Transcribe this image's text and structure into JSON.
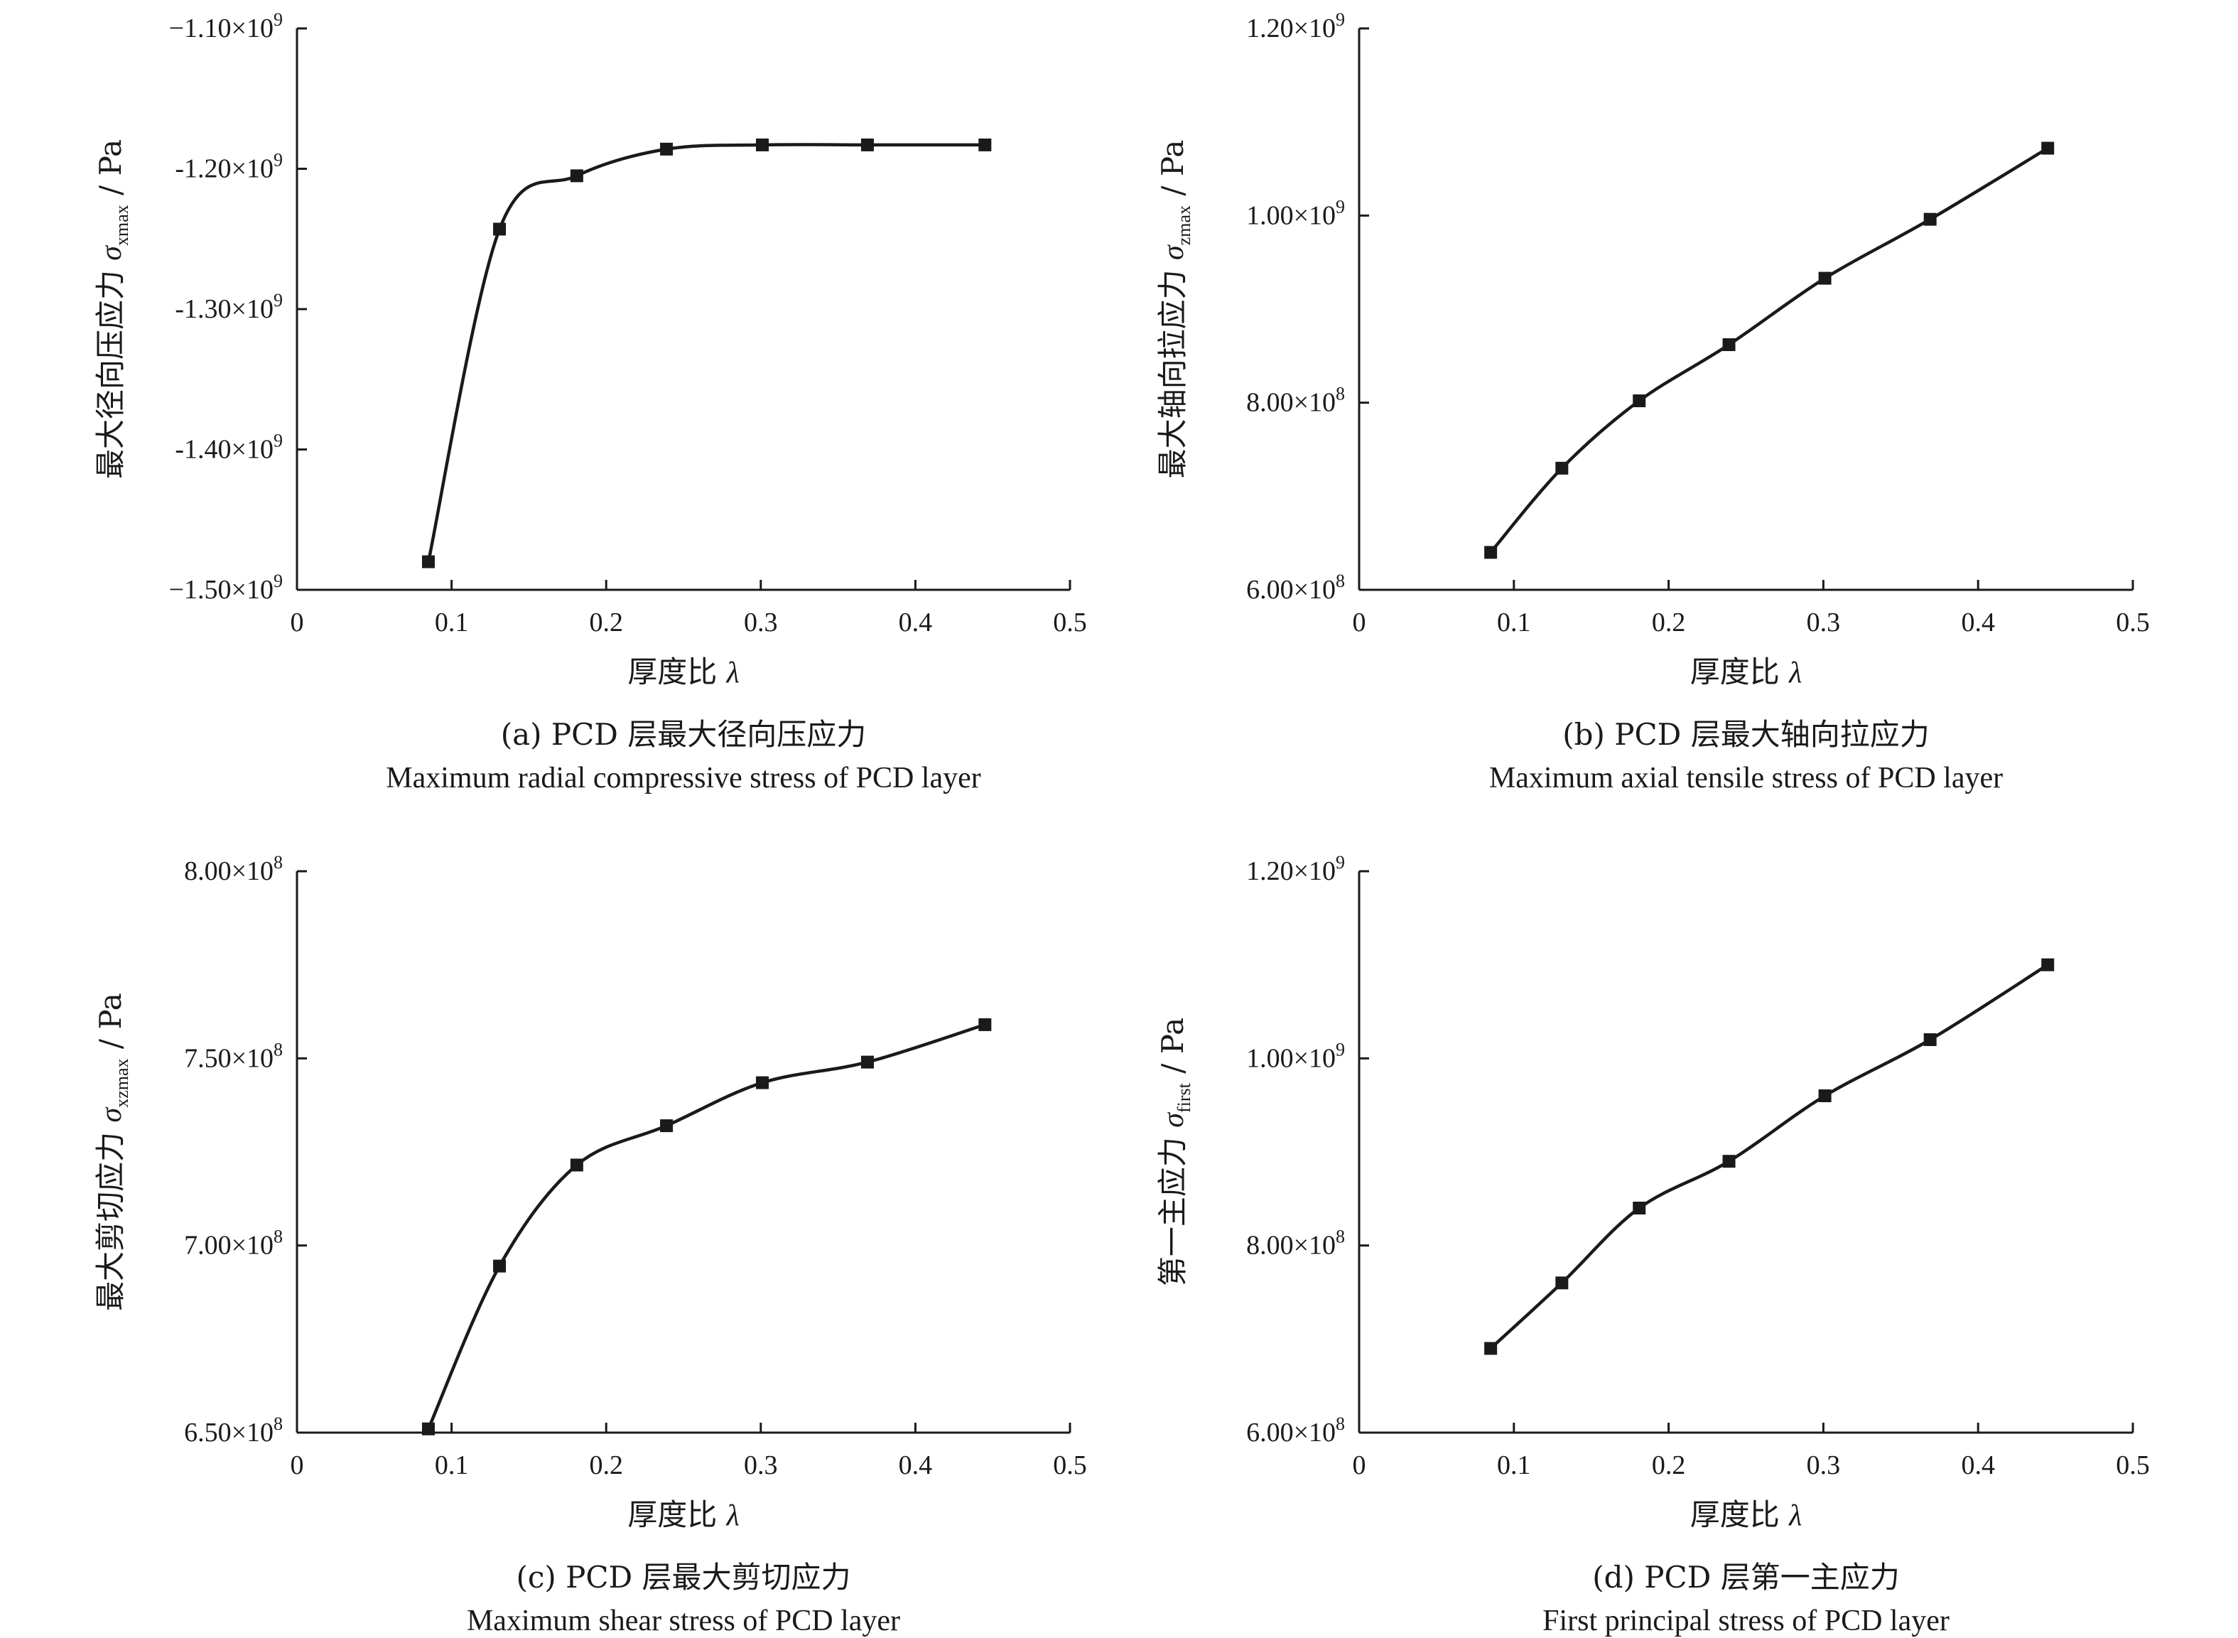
{
  "chart_data": [
    {
      "type": "line",
      "panel": "a",
      "x": [
        0.085,
        0.131,
        0.181,
        0.239,
        0.301,
        0.369,
        0.445
      ],
      "series": [
        {
          "values": [
            -1480000000.0,
            -1243000000.0,
            -1205000000.0,
            -1186000000.0,
            -1183000000.0,
            -1183000000.0,
            -1183000000.0
          ]
        }
      ],
      "xlim": [
        0,
        0.5
      ],
      "ylim": [
        -1500000000.0,
        -1100000000.0
      ],
      "xticks": [
        "0",
        "0.1",
        "0.2",
        "0.3",
        "0.4",
        "0.5"
      ],
      "yticks": [
        {
          "mant": "−1.10×10",
          "exp": "9"
        },
        {
          "mant": "-1.20×10",
          "exp": "9"
        },
        {
          "mant": "-1.30×10",
          "exp": "9"
        },
        {
          "mant": "-1.40×10",
          "exp": "9"
        },
        {
          "mant": "−1.50×10",
          "exp": "9"
        }
      ],
      "xlabel": {
        "text": "厚度比",
        "symbol": "λ"
      },
      "ylabel": {
        "text": "最大径向压应力",
        "symbol": "σ",
        "sub": "xmax",
        "unit": " / Pa"
      },
      "caption_cn": "(a) PCD 层最大径向压应力",
      "caption_en": "Maximum radial compressive stress of PCD layer",
      "grid": false,
      "marker": "square"
    },
    {
      "type": "line",
      "panel": "b",
      "x": [
        0.085,
        0.131,
        0.181,
        0.239,
        0.301,
        0.369,
        0.445
      ],
      "series": [
        {
          "values": [
            640000000.0,
            730000000.0,
            802000000.0,
            862000000.0,
            933000000.0,
            996000000.0,
            1072000000.0
          ]
        }
      ],
      "xlim": [
        0,
        0.5
      ],
      "ylim": [
        600000000.0,
        1200000000.0
      ],
      "xticks": [
        "0",
        "0.1",
        "0.2",
        "0.3",
        "0.4",
        "0.5"
      ],
      "yticks": [
        {
          "mant": "1.20×10",
          "exp": "9"
        },
        {
          "mant": "1.00×10",
          "exp": "9"
        },
        {
          "mant": "8.00×10",
          "exp": "8"
        },
        {
          "mant": "6.00×10",
          "exp": "8"
        }
      ],
      "xlabel": {
        "text": "厚度比",
        "symbol": "λ"
      },
      "ylabel": {
        "text": "最大轴向拉应力",
        "symbol": "σ",
        "sub": "zmax",
        "unit": " / Pa"
      },
      "caption_cn": "(b) PCD 层最大轴向拉应力",
      "caption_en": "Maximum axial tensile stress of PCD layer",
      "grid": false,
      "marker": "square"
    },
    {
      "type": "line",
      "panel": "c",
      "x": [
        0.085,
        0.131,
        0.181,
        0.239,
        0.301,
        0.369,
        0.445
      ],
      "series": [
        {
          "values": [
            651000000.0,
            694500000.0,
            721500000.0,
            732000000.0,
            743500000.0,
            749000000.0,
            759000000.0
          ]
        }
      ],
      "xlim": [
        0,
        0.5
      ],
      "ylim": [
        650000000.0,
        800000000.0
      ],
      "xticks": [
        "0",
        "0.1",
        "0.2",
        "0.3",
        "0.4",
        "0.5"
      ],
      "yticks": [
        {
          "mant": "8.00×10",
          "exp": "8"
        },
        {
          "mant": "7.50×10",
          "exp": "8"
        },
        {
          "mant": "7.00×10",
          "exp": "8"
        },
        {
          "mant": "6.50×10",
          "exp": "8"
        }
      ],
      "xlabel": {
        "text": "厚度比",
        "symbol": "λ"
      },
      "ylabel": {
        "text": "最大剪切应力",
        "symbol": "σ",
        "sub": "xzmax",
        "unit": " / Pa"
      },
      "caption_cn": "(c) PCD 层最大剪切应力",
      "caption_en": "Maximum shear stress of PCD layer",
      "grid": false,
      "marker": "square"
    },
    {
      "type": "line",
      "panel": "d",
      "x": [
        0.085,
        0.131,
        0.181,
        0.239,
        0.301,
        0.369,
        0.445
      ],
      "series": [
        {
          "values": [
            690000000.0,
            760000000.0,
            840000000.0,
            890000000.0,
            960000000.0,
            1020000000.0,
            1100000000.0
          ]
        }
      ],
      "xlim": [
        0,
        0.5
      ],
      "ylim": [
        600000000.0,
        1200000000.0
      ],
      "xticks": [
        "0",
        "0.1",
        "0.2",
        "0.3",
        "0.4",
        "0.5"
      ],
      "yticks": [
        {
          "mant": "1.20×10",
          "exp": "9"
        },
        {
          "mant": "1.00×10",
          "exp": "9"
        },
        {
          "mant": "8.00×10",
          "exp": "8"
        },
        {
          "mant": "6.00×10",
          "exp": "8"
        }
      ],
      "xlabel": {
        "text": "厚度比",
        "symbol": "λ"
      },
      "ylabel": {
        "text": "第一主应力",
        "symbol": "σ",
        "sub": "first",
        "unit": " / Pa"
      },
      "caption_cn": "(d) PCD 层第一主应力",
      "caption_en": "First principal stress of PCD layer",
      "grid": false,
      "marker": "square"
    }
  ]
}
